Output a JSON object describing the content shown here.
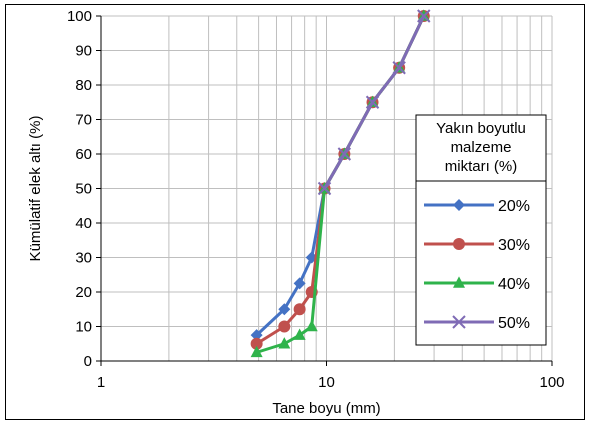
{
  "chart_data": {
    "type": "line",
    "xlabel": "Tane boyu (mm)",
    "ylabel": "Kümülatif elek altı (%)",
    "x_scale": "log",
    "xlim": [
      1,
      100
    ],
    "ylim": [
      0,
      100
    ],
    "x_ticks": [
      "1",
      "10",
      "100"
    ],
    "y_ticks": [
      "0",
      "10",
      "20",
      "30",
      "40",
      "50",
      "60",
      "70",
      "80",
      "90",
      "100"
    ],
    "grid": true,
    "legend": {
      "title": "Yakın boyutlu malzeme miktarı (%)",
      "title_lines": [
        "Yakın boyutlu",
        "malzeme",
        "miktarı (%)"
      ],
      "placement": "right"
    },
    "series": [
      {
        "name": "20%",
        "color": "#4472c4",
        "marker": "diamond",
        "points": [
          [
            4.9,
            7.5
          ],
          [
            6.5,
            15
          ],
          [
            7.6,
            22.5
          ],
          [
            8.6,
            30
          ],
          [
            9.8,
            50
          ],
          [
            12,
            60
          ],
          [
            16,
            75
          ],
          [
            21,
            85
          ],
          [
            27,
            100
          ]
        ]
      },
      {
        "name": "30%",
        "color": "#c0504d",
        "marker": "circle",
        "points": [
          [
            4.9,
            5
          ],
          [
            6.5,
            10
          ],
          [
            7.6,
            15
          ],
          [
            8.6,
            20
          ],
          [
            9.8,
            50
          ],
          [
            12,
            60
          ],
          [
            16,
            75
          ],
          [
            21,
            85
          ],
          [
            27,
            100
          ]
        ]
      },
      {
        "name": "40%",
        "color": "#2fb34b",
        "marker": "triangle",
        "points": [
          [
            4.9,
            2.5
          ],
          [
            6.5,
            5
          ],
          [
            7.6,
            7.5
          ],
          [
            8.6,
            10
          ],
          [
            9.8,
            50
          ],
          [
            12,
            60
          ],
          [
            16,
            75
          ],
          [
            21,
            85
          ],
          [
            27,
            100
          ]
        ]
      },
      {
        "name": "50%",
        "color": "#7f6bb5",
        "marker": "x",
        "points": [
          [
            9.8,
            50
          ],
          [
            12,
            60
          ],
          [
            16,
            75
          ],
          [
            21,
            85
          ],
          [
            27,
            100
          ]
        ]
      }
    ]
  }
}
